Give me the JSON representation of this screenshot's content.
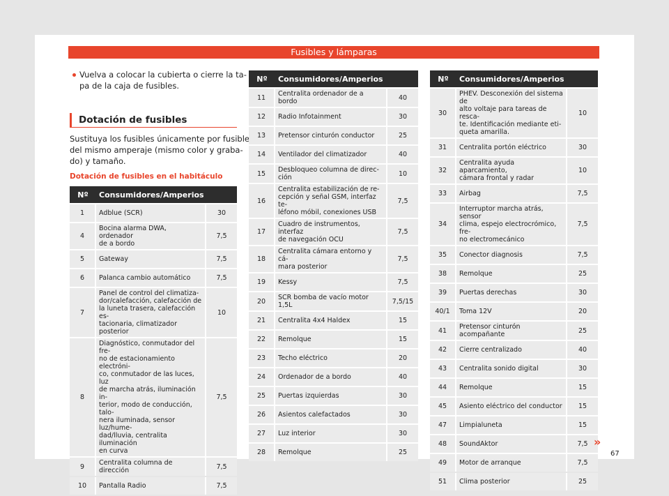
{
  "header": {
    "title": "Fusibles y lámparas"
  },
  "intro": {
    "bullet": "Vuelva a colocar la cubierta o cierre la ta-\npa de la caja de fusibles.",
    "heading": "Dotación de fusibles",
    "paragraph": "Sustituya los fusibles únicamente por fusibles\ndel mismo amperaje (mismo color y graba-\ndo) y tamaño.",
    "subheading": "Dotación de fusibles en el habitáculo"
  },
  "tables": [
    {
      "columns": [
        "Nº",
        "Consumidores/Amperios"
      ],
      "rows": [
        [
          "1",
          "Adblue (SCR)",
          "30"
        ],
        [
          "4",
          "Bocina alarma DWA, ordenador\nde a bordo",
          "7,5"
        ],
        [
          "5",
          "Gateway",
          "7,5"
        ],
        [
          "6",
          "Palanca cambio automático",
          "7,5"
        ],
        [
          "7",
          "Panel de control del climatiza-\ndor/calefacción, calefacción de\nla luneta trasera, calefacción es-\ntacionaria, climatizador posterior",
          "10"
        ],
        [
          "8",
          "Diagnóstico, conmutador del fre-\nno de estacionamiento electróni-\nco, conmutador de las luces, luz\nde marcha atrás, iluminación in-\nterior, modo de conducción, talo-\nnera iluminada, sensor luz/hume-\ndad/lluvia, centralita iluminación\nen curva",
          "7,5"
        ],
        [
          "9",
          "Centralita columna de dirección",
          "7,5"
        ],
        [
          "10",
          "Pantalla Radio",
          "7,5"
        ]
      ]
    },
    {
      "columns": [
        "Nº",
        "Consumidores/Amperios"
      ],
      "rows": [
        [
          "11",
          "Centralita ordenador de a bordo",
          "40"
        ],
        [
          "12",
          "Radio Infotainment",
          "30"
        ],
        [
          "13",
          "Pretensor cinturón conductor",
          "25"
        ],
        [
          "14",
          "Ventilador del climatizador",
          "40"
        ],
        [
          "15",
          "Desbloqueo columna de direc-\nción",
          "10"
        ],
        [
          "16",
          "Centralita estabilización de re-\ncepción y señal GSM, interfaz te-\nléfono móbil, conexiones USB",
          "7,5"
        ],
        [
          "17",
          "Cuadro de instrumentos, interfaz\nde navegación OCU",
          "7,5"
        ],
        [
          "18",
          "Centralita cámara entorno y cá-\nmara posterior",
          "7,5"
        ],
        [
          "19",
          "Kessy",
          "7,5"
        ],
        [
          "20",
          "SCR bomba de vacío motor 1,5L",
          "7,5/15"
        ],
        [
          "21",
          "Centralita 4x4 Haldex",
          "15"
        ],
        [
          "22",
          "Remolque",
          "15"
        ],
        [
          "23",
          "Techo eléctrico",
          "20"
        ],
        [
          "24",
          "Ordenador de a bordo",
          "40"
        ],
        [
          "25",
          "Puertas izquierdas",
          "30"
        ],
        [
          "26",
          "Asientos calefactados",
          "30"
        ],
        [
          "27",
          "Luz interior",
          "30"
        ],
        [
          "28",
          "Remolque",
          "25"
        ]
      ]
    },
    {
      "columns": [
        "Nº",
        "Consumidores/Amperios"
      ],
      "rows": [
        [
          "30",
          "PHEV. Desconexión del sistema de\nalto voltaje para tareas de resca-\nte. Identificación mediante eti-\nqueta amarilla.",
          "10"
        ],
        [
          "31",
          "Centralita portón eléctrico",
          "30"
        ],
        [
          "32",
          "Centralita ayuda aparcamiento,\ncámara frontal y radar",
          "10"
        ],
        [
          "33",
          "Airbag",
          "7,5"
        ],
        [
          "34",
          "Interruptor marcha atrás, sensor\nclima, espejo electrocrómico, fre-\nno electromecánico",
          "7,5"
        ],
        [
          "35",
          "Conector diagnosis",
          "7,5"
        ],
        [
          "38",
          "Remolque",
          "25"
        ],
        [
          "39",
          "Puertas derechas",
          "30"
        ],
        [
          "40/1",
          "Toma 12V",
          "20"
        ],
        [
          "41",
          "Pretensor cinturón acompañante",
          "25"
        ],
        [
          "42",
          "Cierre centralizado",
          "40"
        ],
        [
          "43",
          "Centralita sonido digital",
          "30"
        ],
        [
          "44",
          "Remolque",
          "15"
        ],
        [
          "45",
          "Asiento eléctrico del conductor",
          "15"
        ],
        [
          "47",
          "Limpialuneta",
          "15"
        ],
        [
          "48",
          "SoundAktor",
          "7,5"
        ],
        [
          "49",
          "Motor de arranque",
          "7,5"
        ],
        [
          "51",
          "Clima posterior",
          "25"
        ]
      ]
    }
  ],
  "footer": {
    "more": "»",
    "page": "67"
  }
}
